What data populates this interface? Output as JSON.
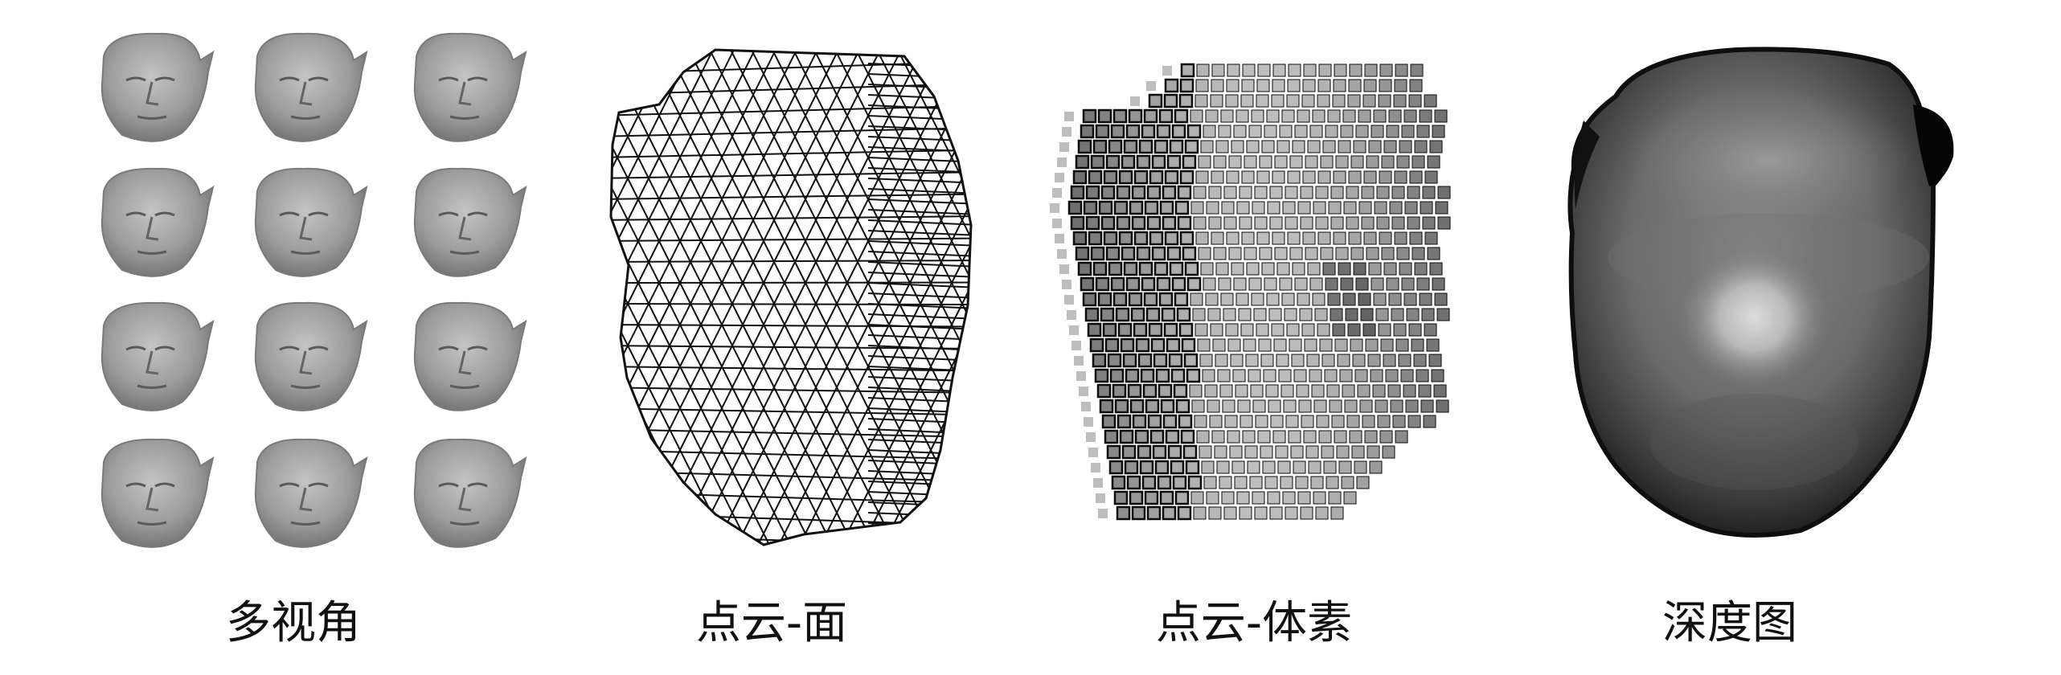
{
  "figure": {
    "panels": [
      {
        "key": "multi_view",
        "caption": "多视角"
      },
      {
        "key": "point_cloud_mesh",
        "caption": "点云-面"
      },
      {
        "key": "point_cloud_voxel",
        "caption": "点云-体素"
      },
      {
        "key": "depth_map",
        "caption": "深度图"
      }
    ],
    "colors": {
      "face_gray": "#9a9a9a",
      "mesh_line": "#111111",
      "depth_dark": "#1a1a1a",
      "depth_light": "#d8d8d8"
    }
  }
}
